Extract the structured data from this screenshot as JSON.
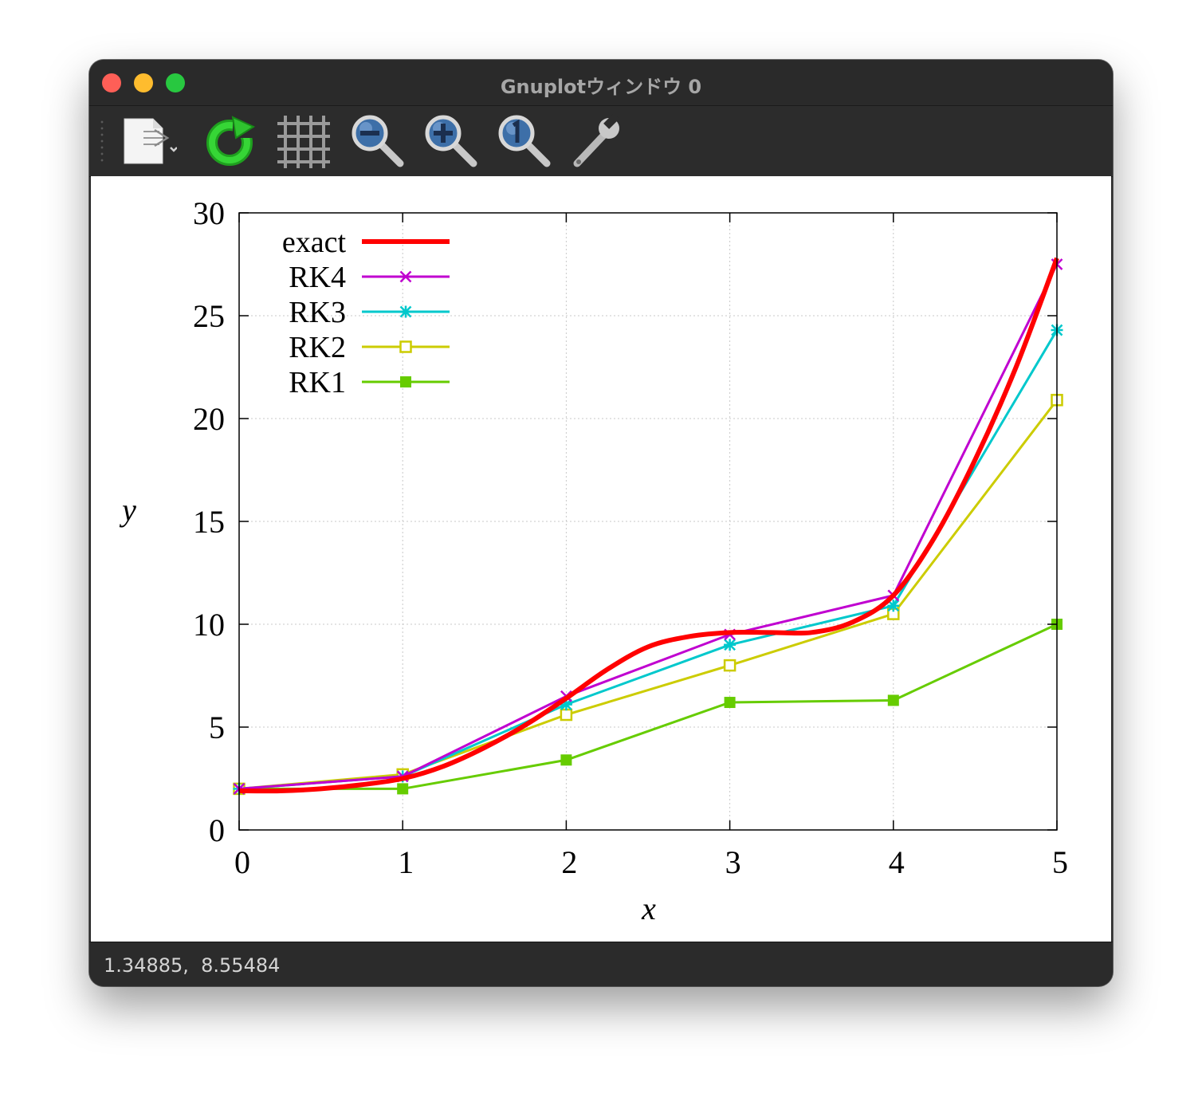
{
  "window": {
    "title": "Gnuplotウィンドウ 0",
    "status": "1.34885,  8.55484"
  },
  "toolbar": {
    "buttons": [
      {
        "name": "export-icon"
      },
      {
        "name": "replot-icon"
      },
      {
        "name": "grid-icon"
      },
      {
        "name": "zoom-out-icon"
      },
      {
        "name": "zoom-in-icon"
      },
      {
        "name": "zoom-reset-icon"
      },
      {
        "name": "settings-icon"
      }
    ]
  },
  "chart_data": {
    "type": "line",
    "title": "",
    "xlabel": "x",
    "ylabel": "y",
    "xlim": [
      0,
      5
    ],
    "ylim": [
      0,
      30
    ],
    "xticks": [
      "0",
      "1",
      "2",
      "3",
      "4",
      "5"
    ],
    "yticks": [
      "0",
      "5",
      "10",
      "15",
      "20",
      "25",
      "30"
    ],
    "grid": true,
    "legend_position": "top-left",
    "series": [
      {
        "name": "exact",
        "color": "#ff0000",
        "marker": "none",
        "x": [
          0,
          0.25,
          0.5,
          0.75,
          1,
          1.25,
          1.5,
          1.75,
          2,
          2.25,
          2.5,
          2.75,
          3,
          3.25,
          3.5,
          3.75,
          4,
          4.25,
          4.5,
          4.75,
          5
        ],
        "y": [
          1.9,
          1.9,
          2.0,
          2.2,
          2.5,
          3.1,
          4.0,
          5.1,
          6.4,
          7.8,
          8.9,
          9.4,
          9.6,
          9.6,
          9.6,
          10.1,
          11.4,
          14.2,
          18.0,
          22.5,
          27.8
        ]
      },
      {
        "name": "RK4",
        "color": "#c000d0",
        "marker": "x",
        "x": [
          0,
          1,
          2,
          3,
          4,
          5
        ],
        "y": [
          2.0,
          2.6,
          6.5,
          9.5,
          11.4,
          27.5
        ]
      },
      {
        "name": "RK3",
        "color": "#00c8cc",
        "marker": "star",
        "x": [
          0,
          1,
          2,
          3,
          4,
          5
        ],
        "y": [
          2.0,
          2.6,
          6.1,
          9.0,
          10.9,
          24.3
        ]
      },
      {
        "name": "RK2",
        "color": "#cccc00",
        "marker": "open-square",
        "x": [
          0,
          1,
          2,
          3,
          4,
          5
        ],
        "y": [
          2.0,
          2.7,
          5.6,
          8.0,
          10.5,
          20.9
        ]
      },
      {
        "name": "RK1",
        "color": "#66cc00",
        "marker": "filled-square",
        "x": [
          0,
          1,
          2,
          3,
          4,
          5
        ],
        "y": [
          2.0,
          2.0,
          3.4,
          6.2,
          6.3,
          10.0
        ]
      }
    ]
  }
}
